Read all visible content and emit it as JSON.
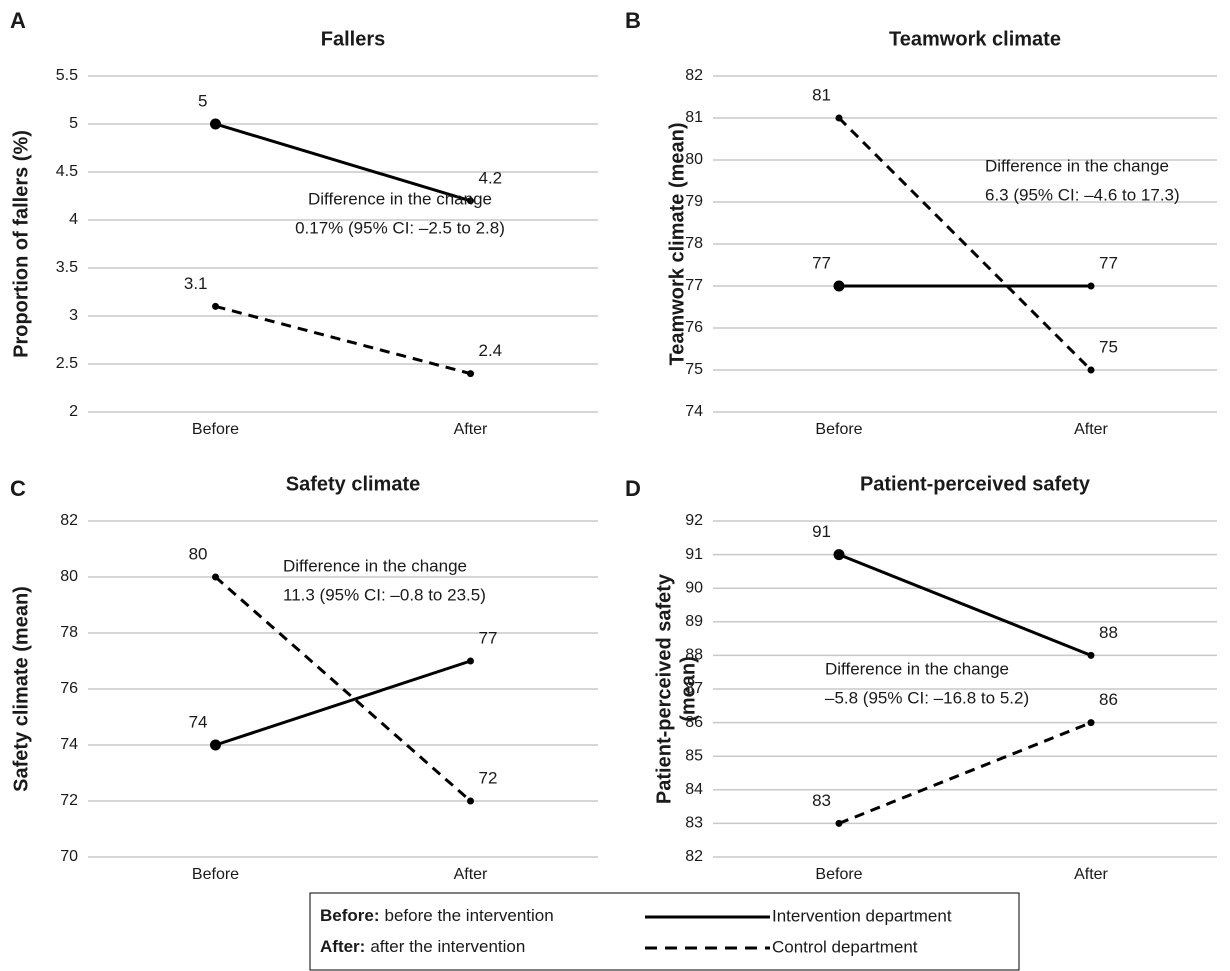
{
  "chart_data": [
    {
      "type": "line",
      "panel_label": "A",
      "title": "Fallers",
      "y_label": [
        "Proportion of fallers (%)"
      ],
      "categories": [
        "Before",
        "After"
      ],
      "series": [
        {
          "name": "Intervention department",
          "color": "#000000",
          "dashed": false,
          "values": [
            5,
            4.2
          ]
        },
        {
          "name": "Control department",
          "color": "#000000",
          "dashed": true,
          "values": [
            3.1,
            2.4
          ]
        }
      ],
      "annotation": [
        "Difference in the change",
        "0.17% (95% CI: –2.5 to 2.8)"
      ],
      "ylim": [
        2,
        5.5
      ],
      "yticks": [
        2,
        2.5,
        3,
        3.5,
        4,
        4.5,
        5,
        5.5
      ],
      "grid": true
    },
    {
      "type": "line",
      "panel_label": "B",
      "title": "Teamwork climate",
      "y_label": [
        "Teamwork climate (mean)"
      ],
      "categories": [
        "Before",
        "After"
      ],
      "series": [
        {
          "name": "Intervention department",
          "color": "#000000",
          "dashed": false,
          "values": [
            77,
            77
          ]
        },
        {
          "name": "Control department",
          "color": "#000000",
          "dashed": true,
          "values": [
            81,
            75
          ]
        }
      ],
      "annotation": [
        "Difference in the change",
        "6.3 (95% CI: –4.6 to 17.3)"
      ],
      "ylim": [
        74,
        82
      ],
      "yticks": [
        74,
        75,
        76,
        77,
        78,
        79,
        80,
        81,
        82
      ],
      "grid": true
    },
    {
      "type": "line",
      "panel_label": "C",
      "title": "Safety climate",
      "y_label": [
        "Safety climate (mean)"
      ],
      "categories": [
        "Before",
        "After"
      ],
      "series": [
        {
          "name": "Intervention department",
          "color": "#000000",
          "dashed": false,
          "values": [
            74,
            77
          ]
        },
        {
          "name": "Control department",
          "color": "#000000",
          "dashed": true,
          "values": [
            80,
            72
          ]
        }
      ],
      "annotation": [
        "Difference in the change",
        "11.3 (95% CI: –0.8 to 23.5)"
      ],
      "ylim": [
        70,
        82
      ],
      "yticks": [
        70,
        72,
        74,
        76,
        78,
        80,
        82
      ],
      "grid": true
    },
    {
      "type": "line",
      "panel_label": "D",
      "title": "Patient-perceived safety",
      "y_label": [
        "Patient-perceived safety",
        "(mean)"
      ],
      "categories": [
        "Before",
        "After"
      ],
      "series": [
        {
          "name": "Intervention department",
          "color": "#000000",
          "dashed": false,
          "values": [
            91,
            88
          ]
        },
        {
          "name": "Control department",
          "color": "#000000",
          "dashed": true,
          "values": [
            83,
            86
          ]
        }
      ],
      "annotation": [
        "Difference in the change",
        "–5.8 (95% CI: –16.8 to 5.2)"
      ],
      "ylim": [
        82,
        92
      ],
      "yticks": [
        82,
        83,
        84,
        85,
        86,
        87,
        88,
        89,
        90,
        91,
        92
      ],
      "grid": true
    }
  ],
  "legend_notes": [
    {
      "term": "Before:",
      "text": "before the intervention"
    },
    {
      "term": "After:",
      "text": "after the intervention"
    }
  ]
}
